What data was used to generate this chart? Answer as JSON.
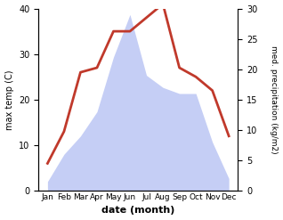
{
  "months": [
    "Jan",
    "Feb",
    "Mar",
    "Apr",
    "May",
    "Jun",
    "Jul",
    "Aug",
    "Sep",
    "Oct",
    "Nov",
    "Dec"
  ],
  "temperature": [
    6,
    13,
    26,
    27,
    35,
    35,
    38,
    41,
    27,
    25,
    22,
    12
  ],
  "precipitation": [
    1.5,
    6,
    9,
    13,
    22,
    29,
    19,
    17,
    16,
    16,
    8,
    2
  ],
  "temp_color": "#c0392b",
  "precip_fill_color": "#c5cef5",
  "temp_ylim": [
    0,
    40
  ],
  "precip_ylim": [
    0,
    30
  ],
  "temp_yticks": [
    0,
    10,
    20,
    30,
    40
  ],
  "precip_yticks": [
    0,
    5,
    10,
    15,
    20,
    25,
    30
  ],
  "xlabel": "date (month)",
  "ylabel_left": "max temp (C)",
  "ylabel_right": "med. precipitation (kg/m2)"
}
